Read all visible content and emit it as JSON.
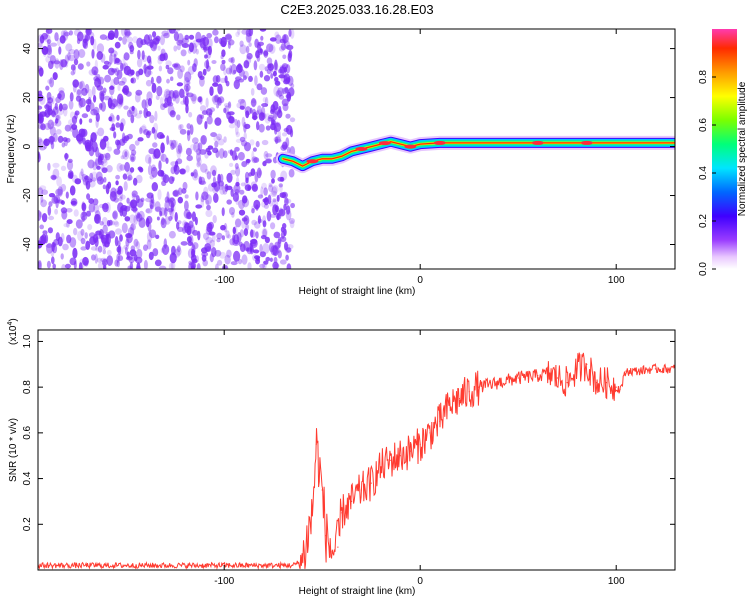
{
  "title": "C2E3.2025.033.16.28.E03",
  "chart_data": [
    {
      "type": "heatmap",
      "xlabel": "Height of straight line (km)",
      "ylabel": "Frequency (Hz)",
      "xlim": [
        -195,
        130
      ],
      "ylim": [
        -50,
        48
      ],
      "x_ticks": [
        -100,
        0,
        100
      ],
      "x_tick_labels": [
        "-100",
        "0",
        "100"
      ],
      "y_ticks": [
        -40,
        -20,
        0,
        20,
        40
      ],
      "y_tick_labels": [
        "-40",
        "-20",
        "0",
        "20",
        "40"
      ],
      "noise_region_x": [
        -195,
        -65
      ],
      "signal_track": {
        "x": [
          -70,
          -65,
          -60,
          -55,
          -50,
          -45,
          -40,
          -35,
          -30,
          -25,
          -20,
          -15,
          -10,
          -5,
          0,
          10,
          20,
          40,
          60,
          80,
          100,
          120,
          130
        ],
        "y": [
          -5,
          -6,
          -8,
          -6,
          -5,
          -5,
          -4,
          -2,
          -1,
          0,
          1,
          2,
          1,
          0,
          1,
          1.5,
          1.5,
          1.5,
          1.5,
          1.5,
          1.5,
          1.5,
          1.5
        ]
      },
      "colorbar": {
        "label": "Normalized spectral amplitude",
        "range": [
          0,
          1
        ],
        "ticks": [
          0,
          0.2,
          0.4,
          0.6,
          0.8
        ],
        "tick_labels": [
          "0.0",
          "0.2",
          "0.4",
          "0.6",
          "0.8"
        ]
      }
    },
    {
      "type": "line",
      "xlabel": "Height of straight line (km)",
      "ylabel": "SNR (10 * v/v)",
      "y_multiplier": "(x10",
      "y_multiplier_exp": "4",
      "y_multiplier_close": ")",
      "xlim": [
        -195,
        130
      ],
      "ylim": [
        0,
        1.05
      ],
      "x_ticks": [
        -100,
        0,
        100
      ],
      "x_tick_labels": [
        "-100",
        "0",
        "100"
      ],
      "y_ticks": [
        0.2,
        0.4,
        0.6,
        0.8,
        1.0
      ],
      "y_tick_labels": [
        "0.2",
        "0.4",
        "0.6",
        "0.8",
        "1.0"
      ],
      "series": [
        {
          "color": "#ff3b30",
          "x": [
            -195,
            -150,
            -100,
            -80,
            -65,
            -60,
            -55,
            -53,
            -50,
            -48,
            -45,
            -42,
            -40,
            -35,
            -30,
            -25,
            -20,
            -15,
            -10,
            -5,
            0,
            5,
            10,
            15,
            20,
            25,
            30,
            40,
            50,
            60,
            65,
            70,
            75,
            80,
            85,
            90,
            95,
            100,
            102,
            105,
            110,
            120,
            130
          ],
          "y": [
            0.02,
            0.02,
            0.02,
            0.02,
            0.02,
            0.04,
            0.25,
            0.55,
            0.35,
            0.15,
            0.08,
            0.1,
            0.25,
            0.3,
            0.35,
            0.38,
            0.45,
            0.48,
            0.5,
            0.52,
            0.55,
            0.6,
            0.65,
            0.72,
            0.75,
            0.78,
            0.8,
            0.82,
            0.84,
            0.85,
            0.86,
            0.84,
            0.82,
            0.88,
            0.9,
            0.82,
            0.82,
            0.8,
            0.79,
            0.87,
            0.87,
            0.88,
            0.88
          ]
        }
      ]
    }
  ],
  "colors": {
    "axis": "#000000",
    "noise": "#7b2cf5",
    "line": "#ff3b30"
  }
}
